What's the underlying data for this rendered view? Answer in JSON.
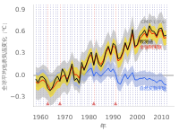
{
  "chart_data": {
    "type": "line",
    "xlabel": "年",
    "ylabel": "全球平均地表気温変化（℃）",
    "x": [
      1958,
      1959,
      1960,
      1961,
      1962,
      1963,
      1964,
      1965,
      1966,
      1967,
      1968,
      1969,
      1970,
      1971,
      1972,
      1973,
      1974,
      1975,
      1976,
      1977,
      1978,
      1979,
      1980,
      1981,
      1982,
      1983,
      1984,
      1985,
      1986,
      1987,
      1988,
      1989,
      1990,
      1991,
      1992,
      1993,
      1994,
      1995,
      1996,
      1997,
      1998,
      1999,
      2000,
      2001,
      2002,
      2003,
      2004,
      2005,
      2006,
      2007,
      2008,
      2009,
      2010,
      2011,
      2012
    ],
    "xlim": [
      1957,
      2015
    ],
    "ylim": [
      -0.42,
      0.97
    ],
    "xticks": [
      1960,
      1970,
      1980,
      1990,
      2000,
      2010
    ],
    "yticks": [
      {
        "value": -0.3,
        "label": "−0.3"
      },
      {
        "value": 0,
        "label": "0.0"
      },
      {
        "value": 0.3,
        "label": "0.3"
      },
      {
        "value": 0.6,
        "label": "0.6"
      },
      {
        "value": 0.9,
        "label": "0.9"
      }
    ],
    "grid": false,
    "series": [
      {
        "type": "band",
        "color": "#b0b0b0",
        "lower": [
          -0.32,
          -0.34,
          -0.32,
          -0.29,
          -0.31,
          -0.34,
          -0.41,
          -0.4,
          -0.36,
          -0.31,
          -0.3,
          -0.24,
          -0.22,
          -0.27,
          -0.21,
          -0.1,
          -0.2,
          -0.2,
          -0.25,
          -0.1,
          -0.12,
          -0.07,
          0.03,
          0.06,
          -0.06,
          0.07,
          -0.03,
          -0.05,
          0.01,
          0.1,
          0.17,
          0.08,
          0.2,
          0.16,
          -0.01,
          0.01,
          0.1,
          0.23,
          0.15,
          0.24,
          0.39,
          0.18,
          0.21,
          0.3,
          0.34,
          0.39,
          0.31,
          0.43,
          0.38,
          0.39,
          0.33,
          0.42,
          0.44,
          0.34,
          0.35
        ],
        "upper": [
          0.12,
          0.1,
          0.12,
          0.15,
          0.13,
          0.1,
          0.03,
          0.04,
          0.08,
          0.13,
          0.14,
          0.19,
          0.21,
          0.16,
          0.22,
          0.33,
          0.23,
          0.23,
          0.18,
          0.33,
          0.31,
          0.36,
          0.46,
          0.49,
          0.37,
          0.5,
          0.4,
          0.38,
          0.44,
          0.53,
          0.6,
          0.51,
          0.63,
          0.59,
          0.42,
          0.44,
          0.53,
          0.66,
          0.58,
          0.67,
          0.82,
          0.61,
          0.64,
          0.73,
          0.77,
          0.82,
          0.74,
          0.86,
          0.81,
          0.82,
          0.76,
          0.85,
          0.87,
          0.77,
          0.78
        ]
      },
      {
        "type": "band",
        "color": "#99aadd",
        "lower": [
          -0.15,
          -0.17,
          -0.13,
          -0.11,
          -0.14,
          -0.2,
          -0.27,
          -0.26,
          -0.2,
          -0.15,
          -0.15,
          -0.11,
          -0.09,
          -0.17,
          -0.11,
          -0.05,
          -0.14,
          -0.15,
          -0.19,
          -0.06,
          -0.09,
          -0.06,
          -0.02,
          0.0,
          -0.11,
          -0.05,
          -0.09,
          -0.11,
          -0.07,
          -0.04,
          0.0,
          -0.05,
          -0.01,
          -0.08,
          -0.2,
          -0.22,
          -0.14,
          -0.08,
          -0.15,
          -0.1,
          -0.06,
          -0.16,
          -0.16,
          -0.14,
          -0.14,
          -0.13,
          -0.16,
          -0.14,
          -0.16,
          -0.17,
          -0.2,
          -0.17,
          -0.17,
          -0.22,
          -0.23
        ],
        "upper": [
          0.05,
          0.03,
          0.07,
          0.09,
          0.06,
          0.0,
          -0.07,
          -0.06,
          0.0,
          0.05,
          0.05,
          0.09,
          0.11,
          0.03,
          0.09,
          0.15,
          0.06,
          0.05,
          0.01,
          0.14,
          0.11,
          0.14,
          0.18,
          0.2,
          0.09,
          0.15,
          0.11,
          0.09,
          0.13,
          0.16,
          0.2,
          0.15,
          0.19,
          0.12,
          0.0,
          -0.02,
          0.06,
          0.12,
          0.05,
          0.1,
          0.14,
          0.04,
          0.04,
          0.06,
          0.06,
          0.07,
          0.04,
          0.06,
          0.04,
          0.03,
          0.0,
          0.03,
          0.03,
          -0.02,
          -0.03
        ]
      },
      {
        "type": "line",
        "color": "#3366ee",
        "values": [
          -0.05,
          -0.07,
          -0.03,
          -0.01,
          -0.04,
          -0.1,
          -0.17,
          -0.16,
          -0.1,
          -0.05,
          -0.05,
          -0.01,
          0.01,
          -0.07,
          -0.01,
          0.05,
          -0.04,
          -0.05,
          -0.09,
          0.04,
          0.01,
          0.04,
          0.08,
          0.1,
          -0.01,
          0.05,
          0.01,
          -0.01,
          0.03,
          0.06,
          0.1,
          0.05,
          0.09,
          0.02,
          -0.1,
          -0.12,
          -0.04,
          0.02,
          -0.05,
          0.0,
          0.04,
          -0.06,
          -0.06,
          -0.04,
          -0.04,
          -0.03,
          -0.06,
          -0.04,
          -0.06,
          -0.07,
          -0.1,
          -0.07,
          -0.07,
          -0.12,
          -0.13
        ]
      },
      {
        "type": "band",
        "color": "#ffdd00",
        "lower": [
          -0.19,
          -0.21,
          -0.18,
          -0.16,
          -0.19,
          -0.23,
          -0.3,
          -0.28,
          -0.23,
          -0.18,
          -0.17,
          -0.11,
          -0.1,
          -0.15,
          -0.09,
          0.02,
          -0.09,
          -0.09,
          -0.14,
          0.02,
          -0.01,
          0.05,
          0.15,
          0.18,
          0.05,
          0.18,
          0.09,
          0.05,
          0.11,
          0.21,
          0.28,
          0.18,
          0.31,
          0.27,
          0.1,
          0.12,
          0.2,
          0.34,
          0.25,
          0.34,
          0.48,
          0.28,
          0.31,
          0.4,
          0.44,
          0.48,
          0.42,
          0.53,
          0.47,
          0.48,
          0.42,
          0.51,
          0.52,
          0.41,
          0.42
        ],
        "upper": [
          0.01,
          -0.01,
          0.02,
          0.04,
          0.01,
          -0.03,
          -0.1,
          -0.08,
          -0.03,
          0.02,
          0.03,
          0.09,
          0.1,
          0.05,
          0.11,
          0.22,
          0.11,
          0.11,
          0.06,
          0.22,
          0.19,
          0.25,
          0.35,
          0.38,
          0.25,
          0.38,
          0.29,
          0.25,
          0.31,
          0.41,
          0.48,
          0.38,
          0.51,
          0.47,
          0.3,
          0.32,
          0.4,
          0.54,
          0.45,
          0.54,
          0.68,
          0.48,
          0.51,
          0.6,
          0.64,
          0.68,
          0.62,
          0.73,
          0.67,
          0.68,
          0.62,
          0.71,
          0.72,
          0.61,
          0.62
        ]
      },
      {
        "type": "line",
        "color": "#ee2200",
        "values": [
          -0.09,
          -0.11,
          -0.08,
          -0.06,
          -0.09,
          -0.13,
          -0.2,
          -0.18,
          -0.13,
          -0.08,
          -0.07,
          -0.01,
          0.0,
          -0.05,
          0.01,
          0.12,
          0.01,
          0.01,
          -0.04,
          0.12,
          0.09,
          0.15,
          0.25,
          0.28,
          0.15,
          0.28,
          0.19,
          0.15,
          0.21,
          0.31,
          0.38,
          0.28,
          0.41,
          0.37,
          0.2,
          0.22,
          0.3,
          0.44,
          0.35,
          0.44,
          0.58,
          0.38,
          0.41,
          0.5,
          0.54,
          0.58,
          0.52,
          0.63,
          0.57,
          0.58,
          0.52,
          0.61,
          0.62,
          0.51,
          0.52
        ]
      },
      {
        "type": "line",
        "color": "#111111",
        "values": [
          -0.05,
          -0.1,
          -0.02,
          -0.02,
          -0.06,
          -0.18,
          -0.21,
          -0.16,
          -0.06,
          -0.01,
          -0.08,
          0.09,
          0.03,
          -0.09,
          0.03,
          0.16,
          -0.07,
          -0.04,
          -0.11,
          0.18,
          0.07,
          0.16,
          0.26,
          0.32,
          0.14,
          0.31,
          0.16,
          0.12,
          0.18,
          0.33,
          0.4,
          0.29,
          0.44,
          0.41,
          0.23,
          0.24,
          0.32,
          0.45,
          0.35,
          0.46,
          0.63,
          0.4,
          0.42,
          0.54,
          0.57,
          0.62,
          0.54,
          0.68,
          0.61,
          0.6,
          0.54,
          0.64,
          0.65,
          0.54,
          0.55
        ]
      }
    ],
    "vlines": [
      {
        "x": [
          1958,
          1959,
          1960,
          1961,
          1962,
          1964,
          1965,
          1966,
          1967,
          1969,
          1970,
          1971,
          1972,
          1973,
          1974,
          1975,
          1976,
          1977,
          1978,
          1979,
          1980,
          1981,
          1983,
          1984,
          1985,
          1986,
          1987,
          1988,
          1989,
          1990,
          1992,
          1993,
          1994,
          1995,
          1996,
          1997,
          1998,
          1999,
          2000,
          2001,
          2002,
          2003,
          2004,
          2005,
          2006,
          2007,
          2008,
          2009,
          2010,
          2011,
          2012
        ],
        "color": "#9999cc",
        "line_style": "dotted"
      },
      {
        "x": [
          1963,
          1968,
          1982,
          1991
        ],
        "color": "#dd7777",
        "line_style": "dotted",
        "marker": "triangle"
      }
    ],
    "hlines": [
      {
        "y": 0.0,
        "color": "#888888"
      }
    ],
    "annotations": [
      {
        "text": "CMIPモデル",
        "x": 2001.5,
        "y": 0.72,
        "color": "#777777"
      },
      {
        "text": "観測値",
        "x": 2001.0,
        "y": 0.44,
        "color": "#000000"
      },
      {
        "text": "全強制実験",
        "x": 2001.0,
        "y": 0.37,
        "color": "#ee2200"
      },
      {
        "text": "自然変動実験",
        "x": 2001.0,
        "y": -0.2,
        "color": "#3366ee"
      }
    ]
  }
}
